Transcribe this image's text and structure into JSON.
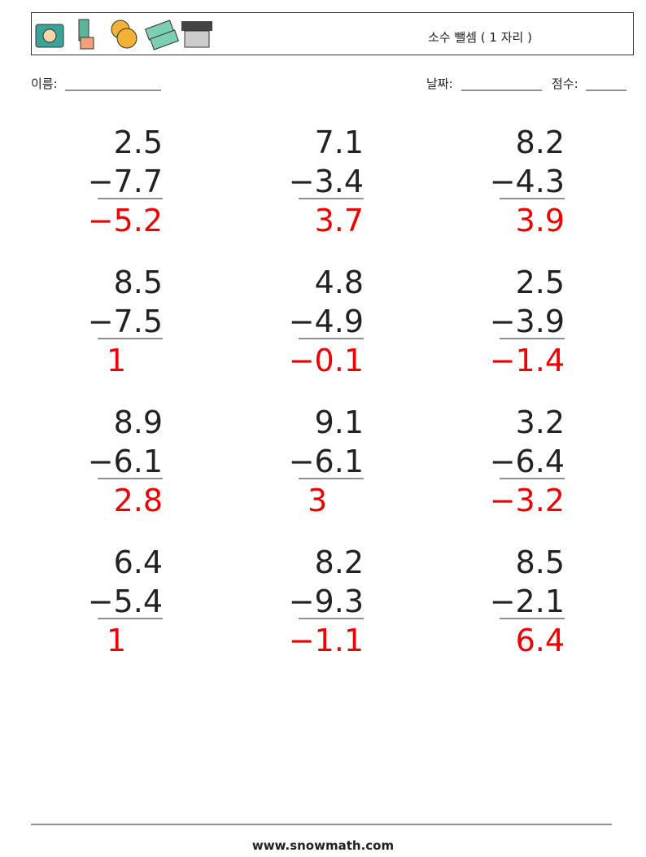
{
  "header": {
    "title": "소수 뺄셈 ( 1 자리 )"
  },
  "fields": {
    "name": "이름:",
    "date": "날짜:",
    "score": "점수:"
  },
  "problems": [
    {
      "a": "2.5",
      "b": "−7.7",
      "answer": "−5.2"
    },
    {
      "a": "7.1",
      "b": "−3.4",
      "answer": "3.7"
    },
    {
      "a": "8.2",
      "b": "−4.3",
      "answer": "3.9"
    },
    {
      "a": "8.5",
      "b": "−7.5",
      "answer": "1"
    },
    {
      "a": "4.8",
      "b": "−4.9",
      "answer": "−0.1"
    },
    {
      "a": "2.5",
      "b": "−3.9",
      "answer": "−1.4"
    },
    {
      "a": "8.9",
      "b": "−6.1",
      "answer": "2.8"
    },
    {
      "a": "9.1",
      "b": "−6.1",
      "answer": "3"
    },
    {
      "a": "3.2",
      "b": "−6.4",
      "answer": "−3.2"
    },
    {
      "a": "6.4",
      "b": "−5.4",
      "answer": "1"
    },
    {
      "a": "8.2",
      "b": "−9.3",
      "answer": "−1.1"
    },
    {
      "a": "8.5",
      "b": "−2.1",
      "answer": "6.4"
    }
  ],
  "footer": {
    "site": "www.snowmath.com"
  }
}
